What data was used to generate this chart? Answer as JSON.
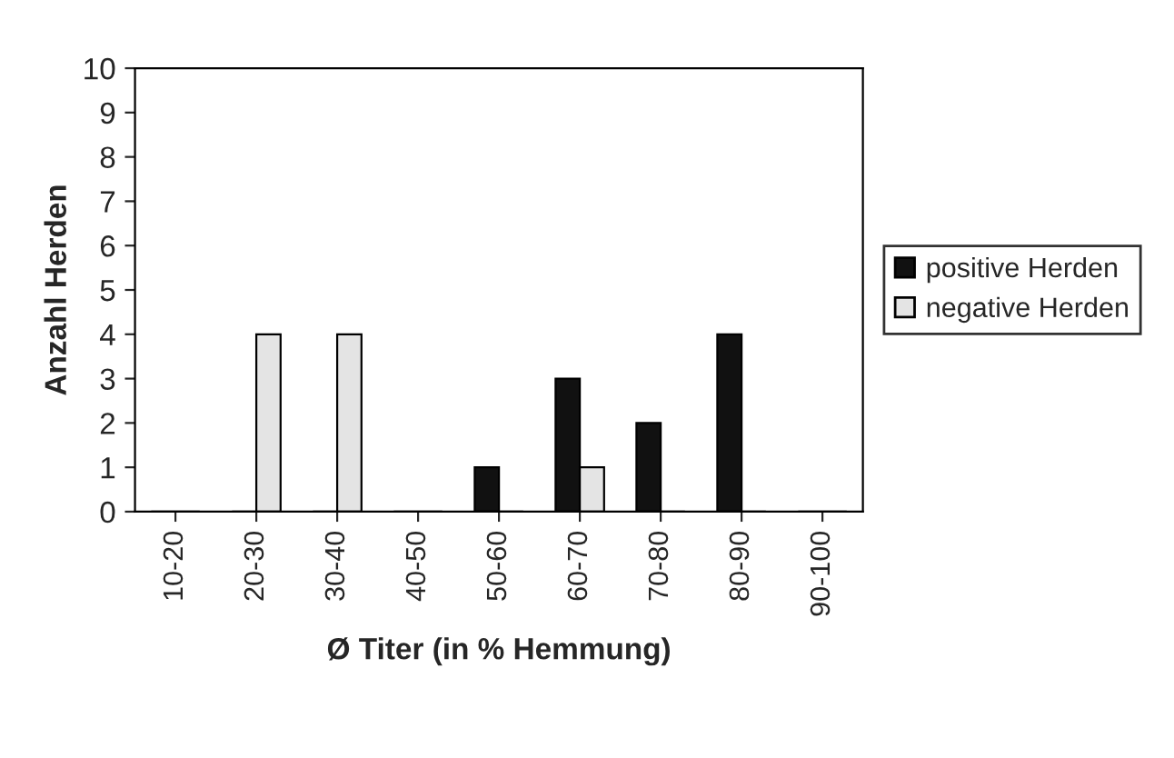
{
  "chart_data": {
    "type": "bar",
    "xlabel": "Ø Titer (in % Hemmung)",
    "ylabel": "Anzahl Herden",
    "categories": [
      "10-20",
      "20-30",
      "30-40",
      "40-50",
      "50-60",
      "60-70",
      "70-80",
      "80-90",
      "90-100"
    ],
    "series": [
      {
        "name": "positive Herden",
        "color": "#111111",
        "values": [
          0,
          0,
          0,
          0,
          1,
          3,
          2,
          4,
          0
        ]
      },
      {
        "name": "negative Herden",
        "color": "#e4e4e4",
        "values": [
          0,
          4,
          4,
          0,
          0,
          1,
          0,
          0,
          0
        ]
      }
    ],
    "ylim": [
      0,
      10
    ],
    "yticks": [
      0,
      1,
      2,
      3,
      4,
      5,
      6,
      7,
      8,
      9,
      10
    ],
    "grid": false,
    "legend": "right"
  }
}
